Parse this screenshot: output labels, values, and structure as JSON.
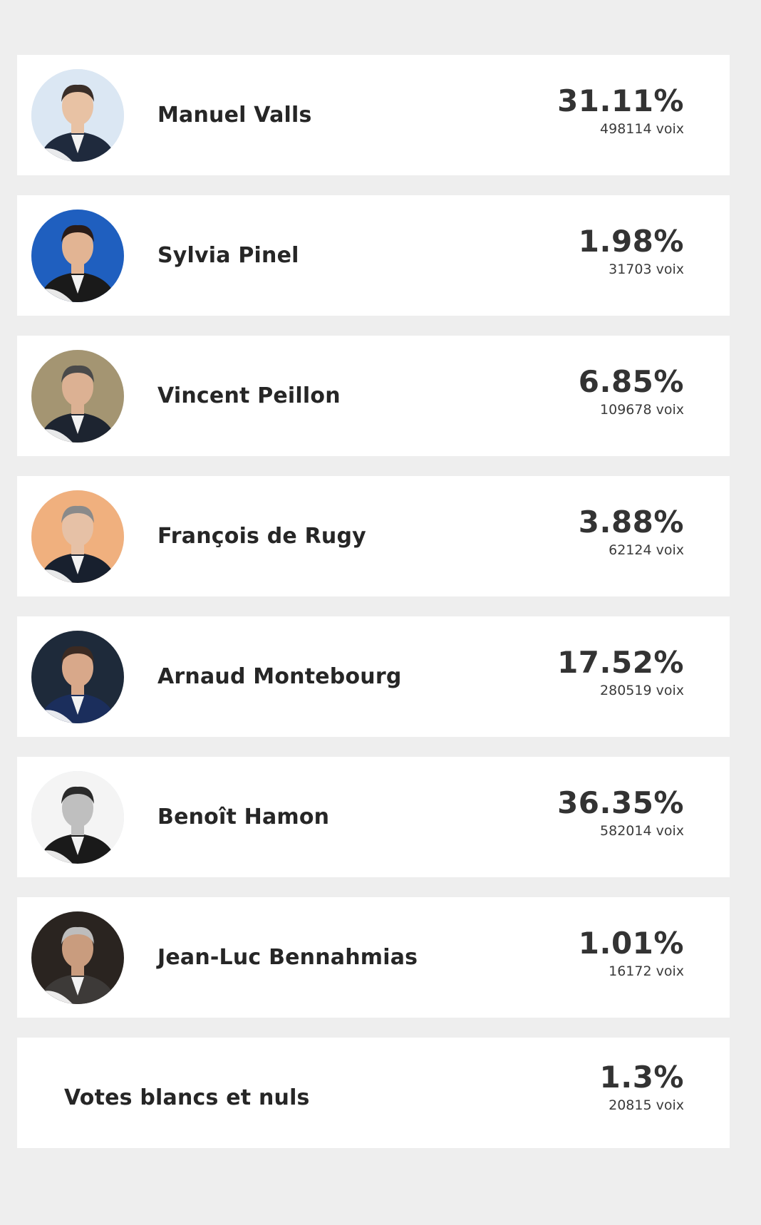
{
  "candidates": [
    {
      "name": "Manuel Valls",
      "percent": "31.11%",
      "votes": "498114 voix",
      "avatar": "photo-icon",
      "bg": "#dbe7f3",
      "skin": "#e8c2a4",
      "suit": "#1f2a3d",
      "hair": "#3a2e28"
    },
    {
      "name": "Sylvia Pinel",
      "percent": "1.98%",
      "votes": "31703 voix",
      "avatar": "photo-icon",
      "bg": "#1f5fbf",
      "skin": "#e2b493",
      "suit": "#1a1a1a",
      "hair": "#2a1c18"
    },
    {
      "name": "Vincent Peillon",
      "percent": "6.85%",
      "votes": "109678 voix",
      "avatar": "photo-icon",
      "bg": "#a49572",
      "skin": "#dcb193",
      "suit": "#1d2430",
      "hair": "#4a4a4a"
    },
    {
      "name": "François de Rugy",
      "percent": "3.88%",
      "votes": "62124 voix",
      "avatar": "photo-icon",
      "bg": "#f0b07e",
      "skin": "#e6c1a6",
      "suit": "#18202e",
      "hair": "#8a8a8a"
    },
    {
      "name": "Arnaud Montebourg",
      "percent": "17.52%",
      "votes": "280519 voix",
      "avatar": "photo-icon",
      "bg": "#1e2a3a",
      "skin": "#d8a88a",
      "suit": "#1b2e5c",
      "hair": "#3b2a22"
    },
    {
      "name": "Benoît Hamon",
      "percent": "36.35%",
      "votes": "582014 voix",
      "avatar": "photo-icon",
      "bg": "#f4f4f4",
      "skin": "#bfbfbf",
      "suit": "#1a1a1a",
      "hair": "#2a2a2a"
    },
    {
      "name": "Jean-Luc Bennahmias",
      "percent": "1.01%",
      "votes": "16172 voix",
      "avatar": "photo-icon",
      "bg": "#2a2420",
      "skin": "#c99c7e",
      "suit": "#3d3a38",
      "hair": "#bdbdbd"
    }
  ],
  "blank": {
    "label": "Votes blancs et nuls",
    "percent": "1.3%",
    "votes": "20815 voix"
  }
}
